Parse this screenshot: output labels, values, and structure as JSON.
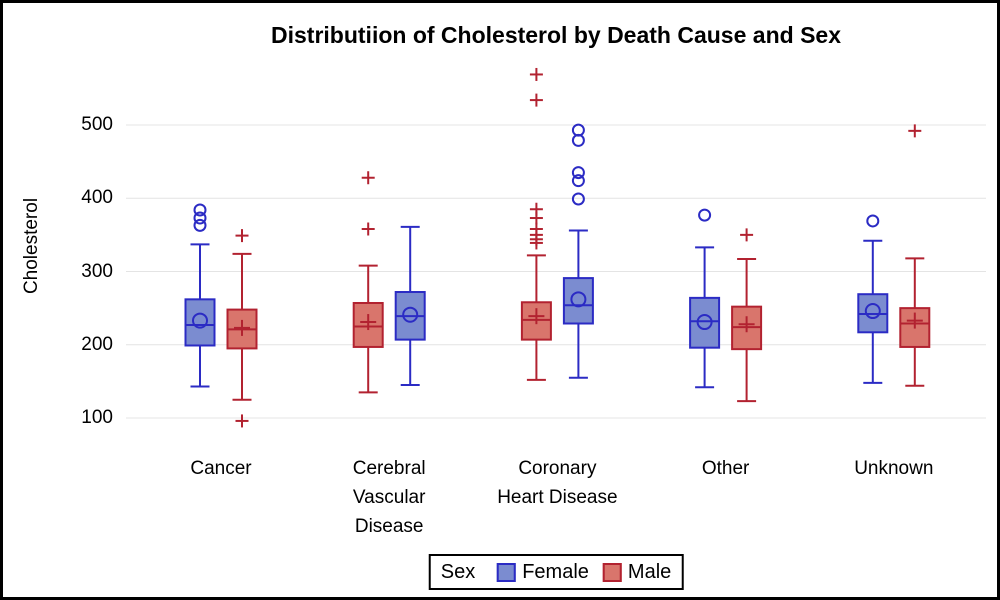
{
  "chart_data": {
    "type": "grouped_boxplot",
    "title": "Distributiion of Cholesterol by Death Cause and Sex",
    "ylabel": "Cholesterol",
    "yticks": [
      100,
      200,
      300,
      400,
      500
    ],
    "ylim": [
      66,
      585
    ],
    "grid": "horizontal",
    "gridline_color": "#e4e4e4",
    "legend_position": "bottom-center",
    "series": {
      "Female": {
        "color": "#2b2bc4",
        "fill": "#7b8cd0",
        "marker": "circle"
      },
      "Male": {
        "color": "#b22230",
        "fill": "#d9756c",
        "marker": "plus"
      }
    },
    "categories": [
      {
        "label": "Cancer",
        "boxes": [
          {
            "sex": "Female",
            "whisker_low": 143,
            "q1": 199,
            "median": 227,
            "mean": 233,
            "q3": 262,
            "whisker_high": 337,
            "outliers": [
              384,
              373,
              363
            ]
          },
          {
            "sex": "Male",
            "whisker_low": 125,
            "q1": 195,
            "median": 221,
            "mean": 223,
            "q3": 248,
            "whisker_high": 324,
            "outliers": [
              349,
              96
            ]
          }
        ]
      },
      {
        "label": "Cerebral\nVascular\nDisease",
        "boxes": [
          {
            "sex": "Male",
            "whisker_low": 135,
            "q1": 197,
            "median": 225,
            "mean": 231,
            "q3": 257,
            "whisker_high": 308,
            "outliers": [
              428,
              358
            ]
          },
          {
            "sex": "Female",
            "whisker_low": 145,
            "q1": 207,
            "median": 239,
            "mean": 241,
            "q3": 272,
            "whisker_high": 361,
            "outliers": []
          }
        ]
      },
      {
        "label": "Coronary\nHeart Disease",
        "boxes": [
          {
            "sex": "Male",
            "whisker_low": 152,
            "q1": 207,
            "median": 234,
            "mean": 239,
            "q3": 258,
            "whisker_high": 322,
            "outliers": [
              569,
              534,
              385,
              373,
              358,
              350,
              344,
              339
            ]
          },
          {
            "sex": "Female",
            "whisker_low": 155,
            "q1": 229,
            "median": 254,
            "mean": 262,
            "q3": 291,
            "whisker_high": 356,
            "outliers": [
              493,
              479,
              435,
              424,
              399
            ]
          }
        ]
      },
      {
        "label": "Other",
        "boxes": [
          {
            "sex": "Female",
            "whisker_low": 142,
            "q1": 196,
            "median": 232,
            "mean": 231,
            "q3": 264,
            "whisker_high": 333,
            "outliers": [
              377
            ]
          },
          {
            "sex": "Male",
            "whisker_low": 123,
            "q1": 194,
            "median": 224,
            "mean": 228,
            "q3": 252,
            "whisker_high": 317,
            "outliers": [
              350
            ]
          }
        ]
      },
      {
        "label": "Unknown",
        "boxes": [
          {
            "sex": "Female",
            "whisker_low": 148,
            "q1": 217,
            "median": 242,
            "mean": 246,
            "q3": 269,
            "whisker_high": 342,
            "outliers": [
              369
            ]
          },
          {
            "sex": "Male",
            "whisker_low": 144,
            "q1": 197,
            "median": 229,
            "mean": 233,
            "q3": 250,
            "whisker_high": 318,
            "outliers": [
              492
            ]
          }
        ]
      }
    ]
  },
  "legend": {
    "title": "Sex",
    "entries": [
      {
        "label": "Female",
        "sex": "Female"
      },
      {
        "label": "Male",
        "sex": "Male"
      }
    ]
  }
}
